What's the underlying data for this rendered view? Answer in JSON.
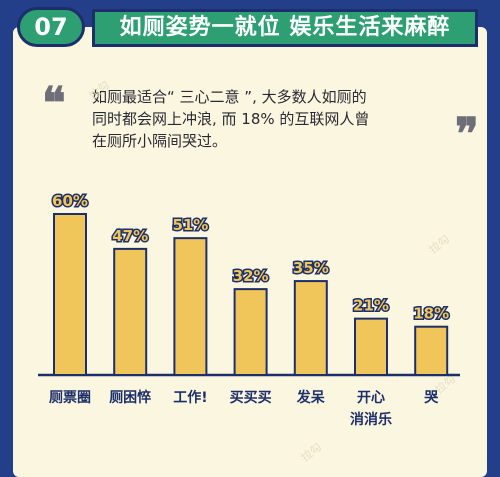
{
  "badge": {
    "number": "07"
  },
  "header": {
    "title": "如厕姿势一就位  娱乐生活来麻醉"
  },
  "quote": {
    "open_mark": "❝",
    "close_mark": "❞",
    "lines": [
      "如厕最适合“ 三心二意 ”, 大多数人如厕的",
      "同时都会网上冲浪, 而 18% 的互联网人曾",
      "在厕所小隔间哭过。"
    ]
  },
  "watermark": "拉勾",
  "colors": {
    "background": "#233f8a",
    "panel": "#fbf6df",
    "accent": "#2e9f73",
    "bar_fill": "#f0c55a",
    "bar_stroke": "#1c2f6a",
    "value_text": "#f0c55a",
    "label_text": "#1c2f6a"
  },
  "chart_data": {
    "type": "bar",
    "categories": [
      [
        "厕票圈"
      ],
      [
        "厕困悴"
      ],
      [
        "工作!"
      ],
      [
        "买买买"
      ],
      [
        "发呆"
      ],
      [
        "开心",
        "消消乐"
      ],
      [
        "哭"
      ]
    ],
    "values": [
      60,
      47,
      51,
      32,
      35,
      21,
      18
    ],
    "value_labels": [
      "60%",
      "47%",
      "51%",
      "32%",
      "35%",
      "21%",
      "18%"
    ],
    "unit": "%",
    "ylim": [
      0,
      60
    ],
    "grid": false,
    "legend": "none"
  }
}
